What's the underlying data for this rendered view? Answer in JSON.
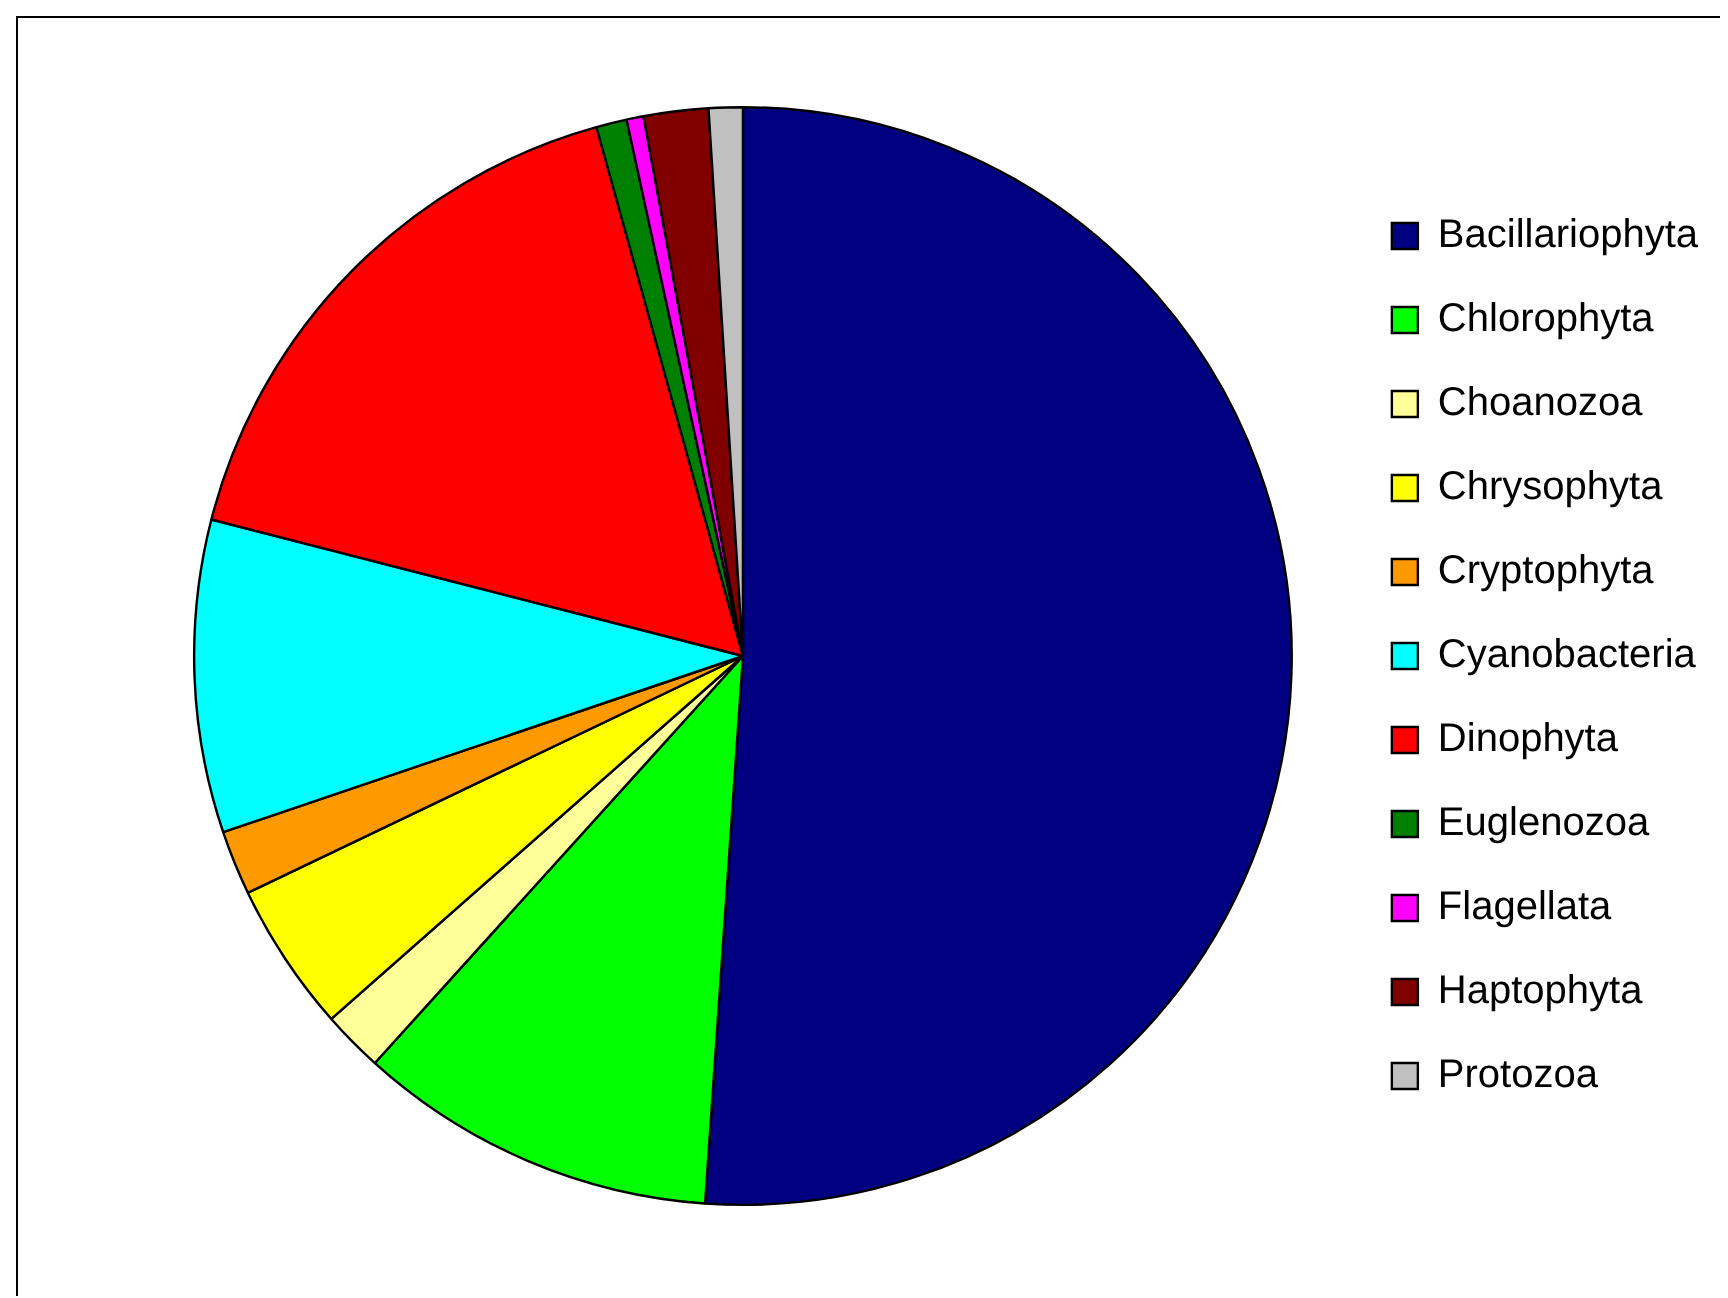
{
  "chart_data": {
    "type": "pie",
    "categories": [
      "Bacillariophyta",
      "Chlorophyta",
      "Choanozoa",
      "Chrysophyta",
      "Cryptophyta",
      "Cyanobacteria",
      "Dinophyta",
      "Euglenozoa",
      "Flagellata",
      "Haptophyta",
      "Protozoa"
    ],
    "values": [
      51.1,
      10.6,
      1.8,
      4.4,
      1.9,
      9.2,
      16.7,
      0.9,
      0.5,
      1.9,
      1.0
    ],
    "colors": [
      "#000080",
      "#00ff00",
      "#ffff99",
      "#ffff00",
      "#ff9900",
      "#00ffff",
      "#ff0000",
      "#008000",
      "#ff00ff",
      "#800000",
      "#c0c0c0"
    ],
    "legend": "right"
  }
}
